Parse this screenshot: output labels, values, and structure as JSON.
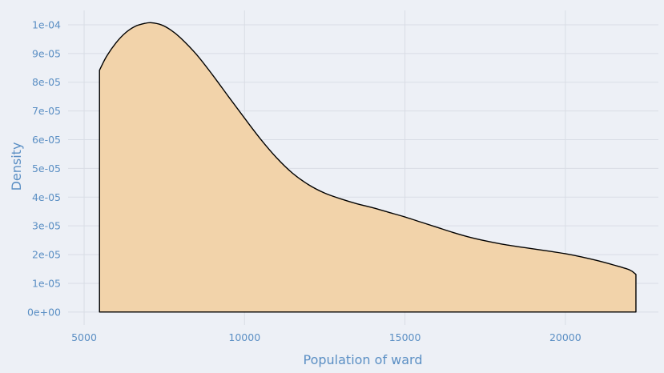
{
  "chart_data": {
    "type": "area",
    "title": "",
    "xlabel": "Population of ward",
    "ylabel": "Density",
    "xlim": [
      4500,
      22900
    ],
    "ylim": [
      -4.5e-06,
      0.000105
    ],
    "x_ticks": [
      {
        "value": 5000,
        "label": "5000"
      },
      {
        "value": 10000,
        "label": "10000"
      },
      {
        "value": 15000,
        "label": "15000"
      },
      {
        "value": 20000,
        "label": "20000"
      }
    ],
    "y_ticks": [
      {
        "value": 0,
        "label": "0e+00"
      },
      {
        "value": 1e-05,
        "label": "1e-05"
      },
      {
        "value": 2e-05,
        "label": "2e-05"
      },
      {
        "value": 3e-05,
        "label": "3e-05"
      },
      {
        "value": 4e-05,
        "label": "4e-05"
      },
      {
        "value": 5e-05,
        "label": "5e-05"
      },
      {
        "value": 6e-05,
        "label": "6e-05"
      },
      {
        "value": 7e-05,
        "label": "7e-05"
      },
      {
        "value": 8e-05,
        "label": "8e-05"
      },
      {
        "value": 9e-05,
        "label": "9e-05"
      },
      {
        "value": 0.0001,
        "label": "1e-04"
      }
    ],
    "grid": true,
    "fill_color": "#f2d3aa",
    "line_color": "#000000",
    "series": [
      {
        "x": [
          5480,
          5700,
          6000,
          6300,
          6600,
          6900,
          7100,
          7400,
          7700,
          8000,
          8500,
          9000,
          9500,
          10000,
          10500,
          11000,
          11500,
          12000,
          12500,
          13000,
          13500,
          14000,
          14500,
          15000,
          15500,
          16000,
          16500,
          17000,
          17500,
          18000,
          18500,
          19000,
          19500,
          20000,
          20500,
          21000,
          21500,
          22000,
          22200
        ],
        "y": [
          8.42e-05,
          8.9e-05,
          9.38e-05,
          9.73e-05,
          9.95e-05,
          0.0001005,
          0.0001007,
          0.0001,
          9.82e-05,
          9.55e-05,
          8.97e-05,
          8.26e-05,
          7.5e-05,
          6.75e-05,
          6.02e-05,
          5.37e-05,
          4.83e-05,
          4.43e-05,
          4.14e-05,
          3.94e-05,
          3.77e-05,
          3.63e-05,
          3.47e-05,
          3.31e-05,
          3.13e-05,
          2.95e-05,
          2.77e-05,
          2.61e-05,
          2.48e-05,
          2.37e-05,
          2.28e-05,
          2.2e-05,
          2.12e-05,
          2.03e-05,
          1.92e-05,
          1.79e-05,
          1.64e-05,
          1.47e-05,
          1.31e-05
        ]
      }
    ]
  }
}
